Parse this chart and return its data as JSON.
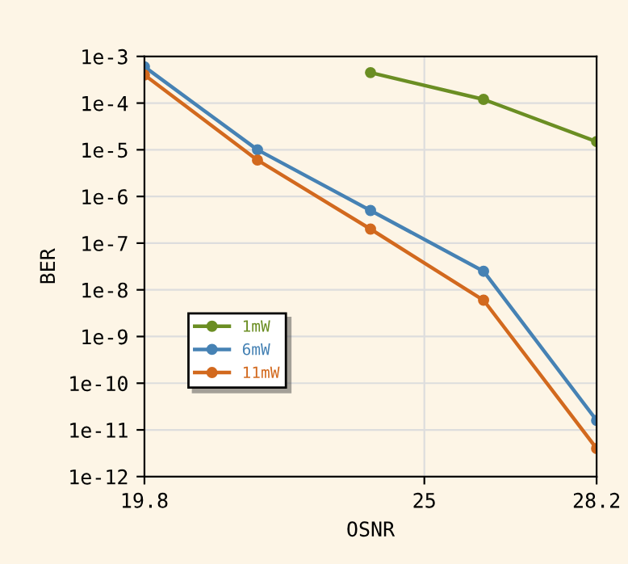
{
  "chart_data": {
    "type": "line",
    "xlabel": "OSNR",
    "ylabel": "BER",
    "x": [
      19.8,
      21.9,
      24.0,
      26.1,
      28.2
    ],
    "series": [
      {
        "name": "1mW",
        "color": "#6b8e23",
        "values": [
          null,
          null,
          0.00045,
          0.00012,
          1.5e-05
        ]
      },
      {
        "name": "6mW",
        "color": "#4682b4",
        "values": [
          0.0006,
          1e-05,
          5e-07,
          2.5e-08,
          1.6e-11
        ]
      },
      {
        "name": "11mW",
        "color": "#d2691e",
        "values": [
          0.0004,
          6e-06,
          2e-07,
          6e-09,
          4e-12
        ]
      }
    ],
    "log": "y",
    "xlim": [
      19.8,
      28.2
    ],
    "xticks": [
      19.8,
      25,
      28.2
    ],
    "ylim": [
      1e-12,
      0.001
    ],
    "yticks": [
      {
        "value": 1e-12,
        "label": "1e-12"
      },
      {
        "value": 1e-11,
        "label": "1e-11"
      },
      {
        "value": 1e-10,
        "label": "1e-10"
      },
      {
        "value": 1e-09,
        "label": "1e-9"
      },
      {
        "value": 1e-08,
        "label": "1e-8"
      },
      {
        "value": 1e-07,
        "label": "1e-7"
      },
      {
        "value": 1e-06,
        "label": "1e-6"
      },
      {
        "value": 1e-05,
        "label": "1e-5"
      },
      {
        "value": 0.0001,
        "label": "1e-4"
      },
      {
        "value": 0.001,
        "label": "1e-3"
      }
    ],
    "grid": true,
    "legend": "center left",
    "marker": "circle",
    "line_style": "solid"
  }
}
